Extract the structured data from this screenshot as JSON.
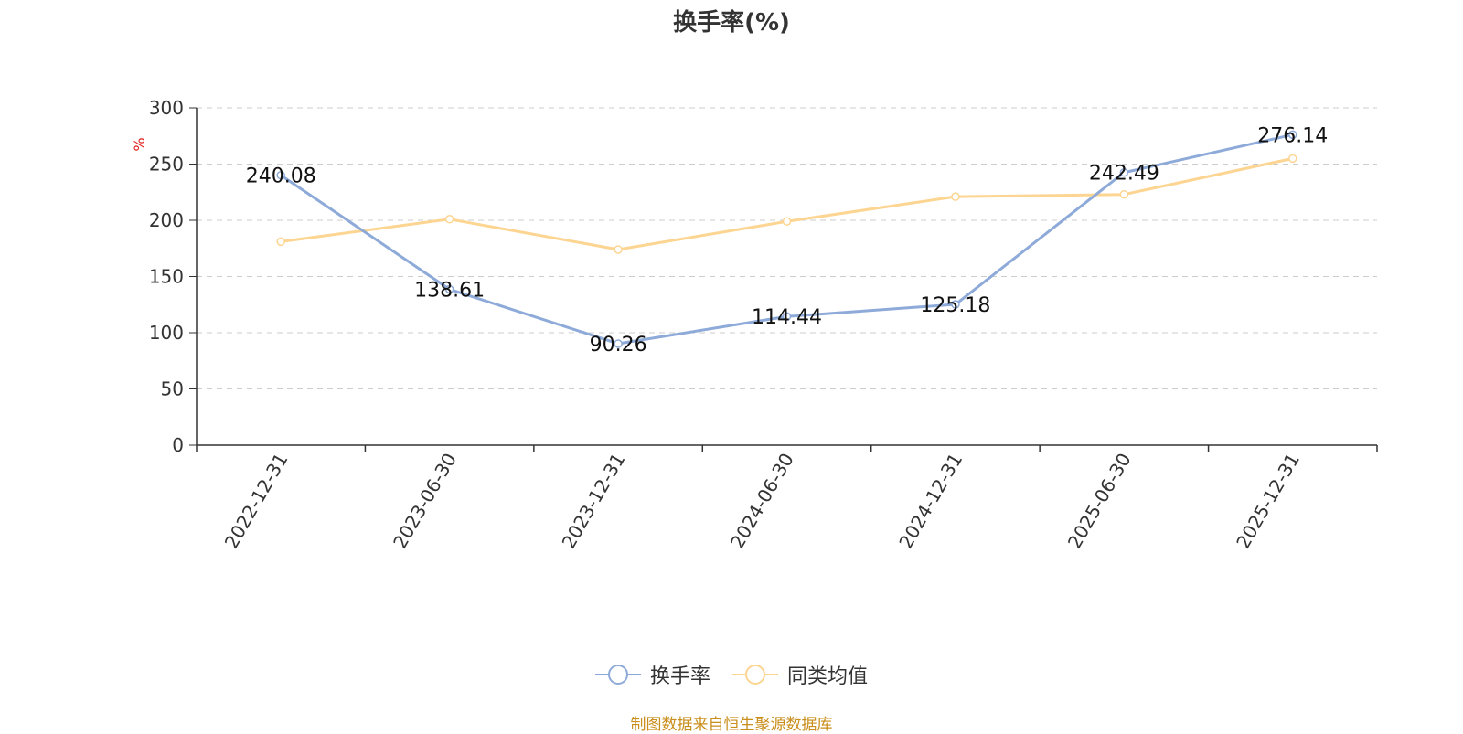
{
  "chart_data": {
    "type": "line",
    "title": "换手率(%)",
    "ylabel": "%",
    "xlabel": "",
    "categories": [
      "2022-12-31",
      "2023-06-30",
      "2023-12-31",
      "2024-06-30",
      "2024-12-31",
      "2025-06-30",
      "2025-12-31"
    ],
    "ylim": [
      0,
      300
    ],
    "yticks": [
      0,
      50,
      100,
      150,
      200,
      250,
      300
    ],
    "grid": true,
    "legend_position": "bottom",
    "series": [
      {
        "name": "换手率",
        "color": "#8eaad9",
        "values": [
          240.08,
          138.61,
          90.26,
          114.44,
          125.18,
          242.49,
          276.14
        ],
        "data_labels": [
          "240.08",
          "138.61",
          "90.26",
          "114.44",
          "125.18",
          "242.49",
          "276.14"
        ]
      },
      {
        "name": "同类均值",
        "color": "#fdd592",
        "values": [
          181,
          201,
          174,
          199,
          221,
          223,
          255
        ]
      }
    ]
  },
  "source": {
    "text": "制图数据来自恒生聚源数据库",
    "color": "#c98e1c"
  }
}
